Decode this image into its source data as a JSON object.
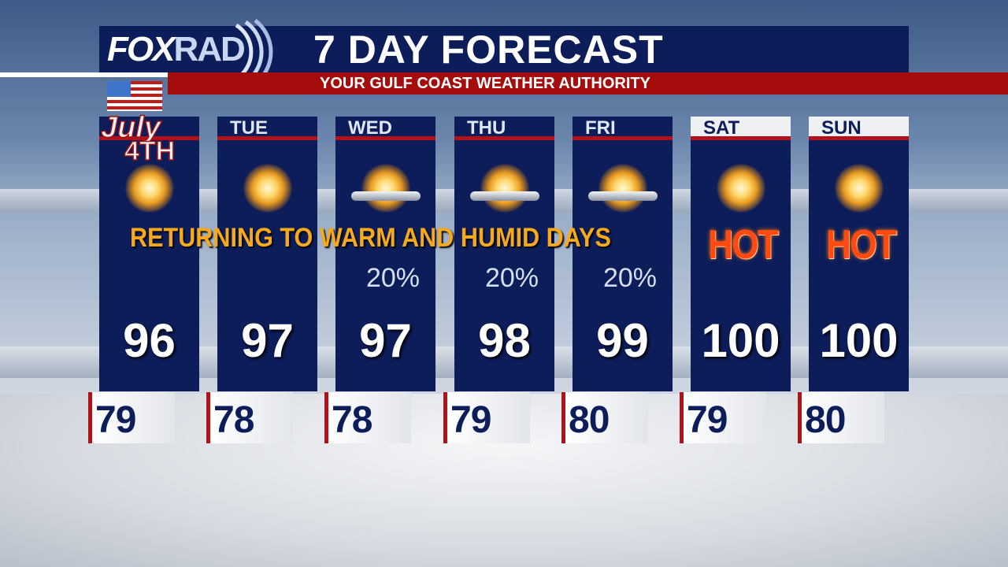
{
  "header": {
    "logo_text": "FOX",
    "logo_text_2": "RAD",
    "title": "7 DAY FORECAST",
    "subtitle": "YOUR GULF COAST WEATHER AUTHORITY"
  },
  "banner": "RETURNING TO WARM AND HUMID DAYS",
  "holiday": {
    "label": "July",
    "label_2": "4TH"
  },
  "days": [
    {
      "day": "",
      "icon": "sunny-icon",
      "pop": "",
      "high": "96",
      "low": "79",
      "hot": ""
    },
    {
      "day": "TUE",
      "icon": "sunny-icon",
      "pop": "",
      "high": "97",
      "low": "78",
      "hot": ""
    },
    {
      "day": "WED",
      "icon": "mostly-sunny-icon",
      "pop": "20%",
      "high": "97",
      "low": "78",
      "hot": ""
    },
    {
      "day": "THU",
      "icon": "mostly-sunny-icon",
      "pop": "20%",
      "high": "98",
      "low": "79",
      "hot": ""
    },
    {
      "day": "FRI",
      "icon": "mostly-sunny-icon",
      "pop": "20%",
      "high": "99",
      "low": "80",
      "hot": ""
    },
    {
      "day": "SAT",
      "icon": "sunny-icon",
      "pop": "",
      "high": "100",
      "low": "79",
      "hot": "HOT"
    },
    {
      "day": "SUN",
      "icon": "sunny-icon",
      "pop": "",
      "high": "100",
      "low": "80",
      "hot": "HOT"
    }
  ],
  "colors": {
    "navy": "#0c1d5a",
    "red": "#a50d0d",
    "banner": "#f5a91b",
    "hot": "#ff4a14"
  }
}
